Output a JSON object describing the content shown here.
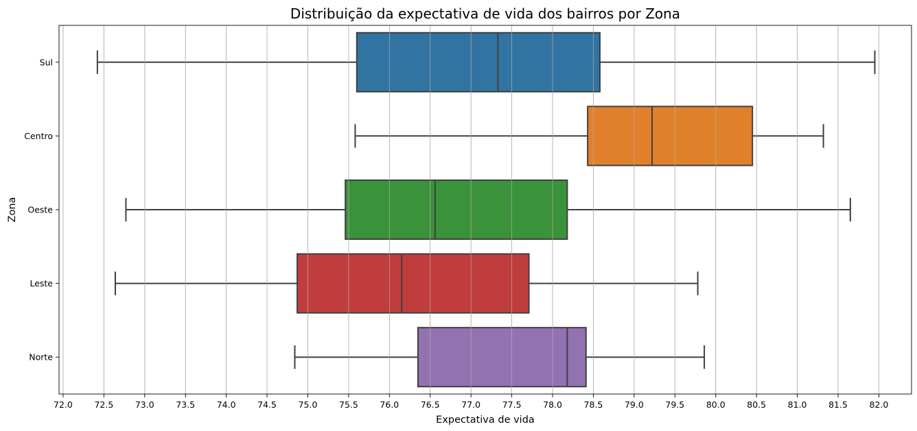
{
  "chart_data": {
    "type": "boxplot",
    "orientation": "horizontal",
    "title": "Distribuição da expectativa de vida dos bairros por Zona",
    "xlabel": "Expectativa de vida",
    "ylabel": "Zona",
    "xlim": [
      71.95,
      82.4
    ],
    "xticks": [
      "72.0",
      "72.5",
      "73.0",
      "73.5",
      "74.0",
      "74.5",
      "75.0",
      "75.5",
      "76.0",
      "76.5",
      "77.0",
      "77.5",
      "78.0",
      "78.5",
      "79.0",
      "79.5",
      "80.0",
      "80.5",
      "81.0",
      "81.5",
      "82.0"
    ],
    "grid": "vertical",
    "categories": [
      "Sul",
      "Centro",
      "Oeste",
      "Leste",
      "Norte"
    ],
    "colors": [
      "#3274a1",
      "#e1812c",
      "#3a923a",
      "#c03d3e",
      "#9372b2"
    ],
    "edge_color": "#3f3f3f",
    "boxes": [
      {
        "name": "Sul",
        "whisker_low": 72.42,
        "q1": 75.6,
        "median": 77.33,
        "q3": 78.58,
        "whisker_high": 81.95
      },
      {
        "name": "Centro",
        "whisker_low": 75.58,
        "q1": 78.43,
        "median": 79.22,
        "q3": 80.45,
        "whisker_high": 81.32
      },
      {
        "name": "Oeste",
        "whisker_low": 72.77,
        "q1": 75.46,
        "median": 76.56,
        "q3": 78.18,
        "whisker_high": 81.65
      },
      {
        "name": "Leste",
        "whisker_low": 72.64,
        "q1": 74.87,
        "median": 76.15,
        "q3": 77.71,
        "whisker_high": 79.78
      },
      {
        "name": "Norte",
        "whisker_low": 74.84,
        "q1": 76.35,
        "median": 78.18,
        "q3": 78.41,
        "whisker_high": 79.86
      }
    ]
  }
}
